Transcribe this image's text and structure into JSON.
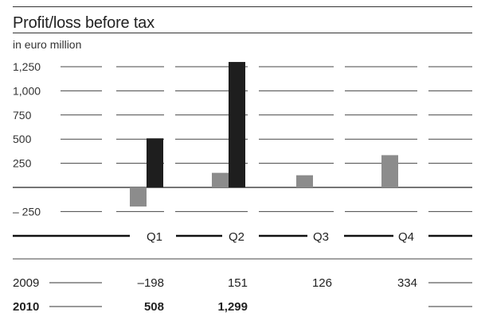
{
  "header": {
    "title": "Profit/loss before tax",
    "unit": "in euro million"
  },
  "chart_data": {
    "type": "bar",
    "categories": [
      "Q1",
      "Q2",
      "Q3",
      "Q4"
    ],
    "y_ticks": [
      {
        "value": 1250,
        "label": "1,250"
      },
      {
        "value": 1000,
        "label": "1,000"
      },
      {
        "value": 750,
        "label": "750"
      },
      {
        "value": 500,
        "label": "500"
      },
      {
        "value": 250,
        "label": "250"
      },
      {
        "value": -250,
        "label": "– 250"
      }
    ],
    "ylim": [
      -250,
      1300
    ],
    "series": [
      {
        "name": "2009",
        "color": "#8c8c8c",
        "values": [
          -198,
          151,
          126,
          334
        ],
        "labels": [
          "–198",
          "151",
          "126",
          "334"
        ]
      },
      {
        "name": "2010",
        "color": "#1e1e1e",
        "values": [
          508,
          1299,
          null,
          null
        ],
        "labels": [
          "508",
          "1,299",
          "",
          ""
        ]
      }
    ]
  }
}
